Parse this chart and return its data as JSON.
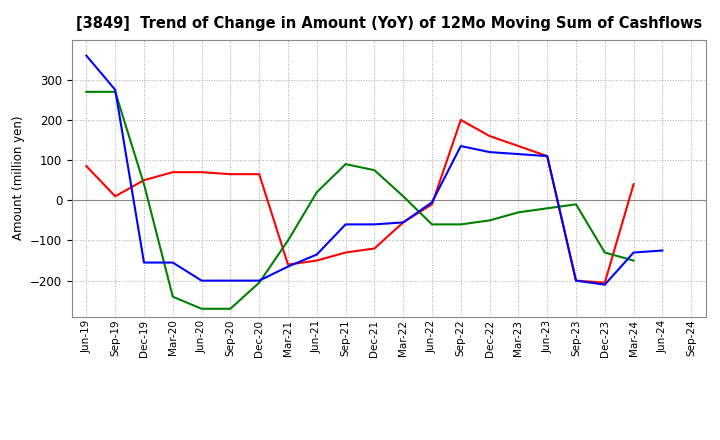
{
  "title": "[3849]  Trend of Change in Amount (YoY) of 12Mo Moving Sum of Cashflows",
  "ylabel": "Amount (million yen)",
  "xlabels": [
    "Jun-19",
    "Sep-19",
    "Dec-19",
    "Mar-20",
    "Jun-20",
    "Sep-20",
    "Dec-20",
    "Mar-21",
    "Jun-21",
    "Sep-21",
    "Dec-21",
    "Mar-22",
    "Jun-22",
    "Sep-22",
    "Dec-22",
    "Mar-23",
    "Jun-23",
    "Sep-23",
    "Dec-23",
    "Mar-24",
    "Jun-24",
    "Sep-24"
  ],
  "operating": [
    85,
    10,
    50,
    70,
    70,
    65,
    65,
    -160,
    -150,
    -130,
    -120,
    -55,
    -10,
    200,
    160,
    135,
    110,
    -200,
    -205,
    40,
    null,
    null
  ],
  "investing": [
    270,
    270,
    40,
    -240,
    -270,
    -270,
    -205,
    -100,
    20,
    90,
    75,
    10,
    -60,
    -60,
    -50,
    -30,
    -20,
    -10,
    -130,
    -150,
    null,
    null
  ],
  "free": [
    360,
    275,
    -155,
    -155,
    -200,
    -200,
    -200,
    -165,
    -135,
    -60,
    -60,
    -55,
    -5,
    135,
    120,
    115,
    110,
    -200,
    -210,
    -130,
    -125,
    null
  ],
  "operating_color": "#ff0000",
  "investing_color": "#008000",
  "free_color": "#0000ff",
  "ylim": [
    -290,
    400
  ],
  "yticks": [
    -200,
    -100,
    0,
    100,
    200,
    300
  ],
  "background_color": "#ffffff",
  "grid_color": "#aaaaaa"
}
